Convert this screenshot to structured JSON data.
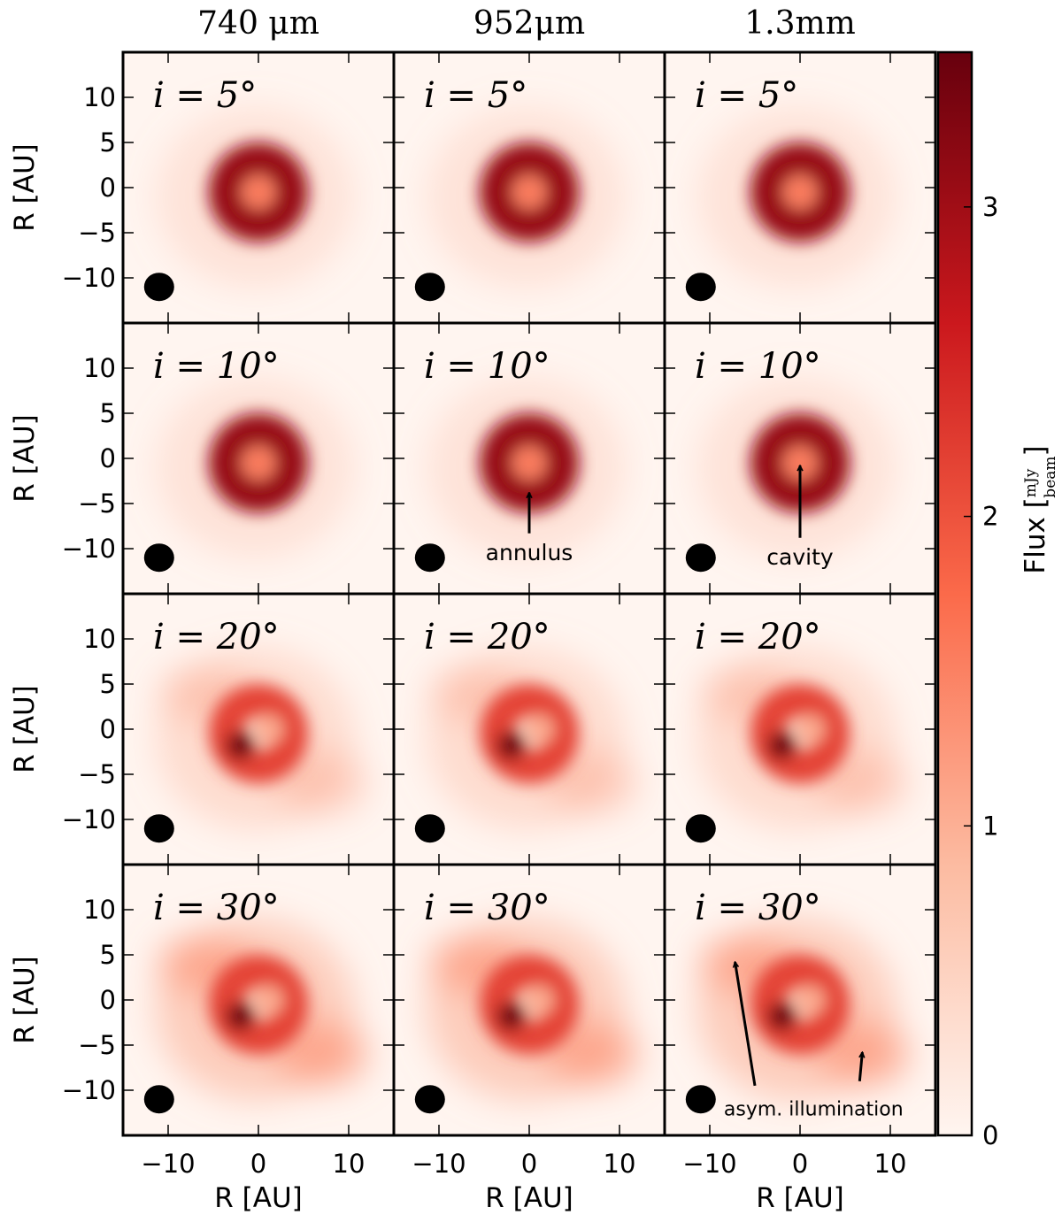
{
  "chart_data": {
    "type": "heatmap",
    "columns": [
      "740 μm",
      "952μm",
      "1.3mm"
    ],
    "rows": [
      {
        "label": "i = 5°"
      },
      {
        "label": "i = 10°"
      },
      {
        "label": "i = 20°"
      },
      {
        "label": "i = 30°"
      }
    ],
    "inclinations_deg": [
      5,
      10,
      20,
      30
    ],
    "xlabel": "R [AU]",
    "ylabel": "R [AU]",
    "xlim": [
      -15,
      15
    ],
    "ylim": [
      -15,
      15
    ],
    "xticks": [
      {
        "v": -10,
        "t": "−10"
      },
      {
        "v": 0,
        "t": "0"
      },
      {
        "v": 10,
        "t": "10"
      }
    ],
    "yticks": [
      {
        "v": 10,
        "t": "10"
      },
      {
        "v": 5,
        "t": "5"
      },
      {
        "v": 0,
        "t": "0"
      },
      {
        "v": -5,
        "t": "−5"
      },
      {
        "v": -10,
        "t": "−10"
      }
    ],
    "beam_position": [
      -11,
      -11
    ],
    "colorbar": {
      "label": "Flux [mJy/beam]",
      "label_main": "Flux [",
      "unit_num": "mJy",
      "unit_den": "beam",
      "label_close": "]",
      "range": [
        0,
        3.5
      ],
      "colors": [
        "#fff5f0",
        "#fcbba1",
        "#fb6a4a",
        "#cb181d",
        "#67000d"
      ],
      "ticks": [
        {
          "v": 0,
          "t": "0"
        },
        {
          "v": 1,
          "t": "1"
        },
        {
          "v": 2,
          "t": "2"
        },
        {
          "v": 3,
          "t": "3"
        }
      ]
    },
    "annotations": [
      {
        "row": 1,
        "col": 1,
        "text": "annulus",
        "text_at": [
          0,
          -10.5
        ],
        "arrows": [
          {
            "from": [
              0,
              -8.3
            ],
            "to": [
              0,
              -3.8
            ]
          }
        ]
      },
      {
        "row": 1,
        "col": 2,
        "text": "cavity",
        "text_at": [
          0,
          -11
        ],
        "arrows": [
          {
            "from": [
              0,
              -8.8
            ],
            "to": [
              0,
              -0.8
            ]
          }
        ]
      },
      {
        "row": 3,
        "col": 2,
        "text": "asym. illumination",
        "text_at": [
          1.5,
          -12
        ],
        "arrows": [
          {
            "from": [
              -5,
              -9.5
            ],
            "to": [
              -7.2,
              4.2
            ]
          },
          {
            "from": [
              6.6,
              -9
            ],
            "to": [
              6.9,
              -5.8
            ]
          }
        ]
      }
    ]
  }
}
